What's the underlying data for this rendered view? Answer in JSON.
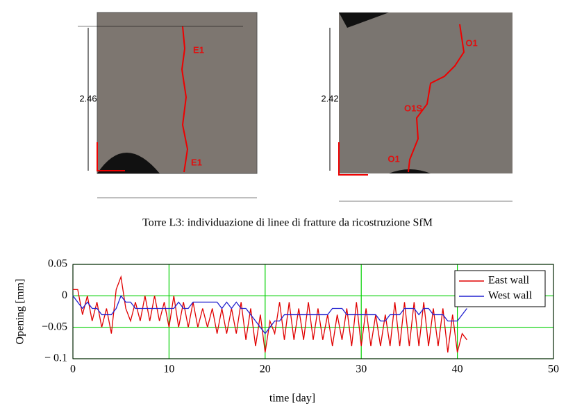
{
  "figures": [
    {
      "dimension": "2.46",
      "labels": [
        "E1",
        "E1"
      ]
    },
    {
      "dimension": "2.42",
      "labels": [
        "O1",
        "O1S",
        "O1"
      ]
    }
  ],
  "caption": "Torre L3: individuazione di linee di fratture da ricostruzione SfM",
  "chart_data": {
    "type": "line",
    "xlabel": "time [day]",
    "ylabel": "Opening [mm]",
    "x": [
      0,
      0.5,
      1,
      1.5,
      2,
      2.5,
      3,
      3.5,
      4,
      4.5,
      5,
      5.5,
      6,
      6.5,
      7,
      7.5,
      8,
      8.5,
      9,
      9.5,
      10,
      10.5,
      11,
      11.5,
      12,
      12.5,
      13,
      13.5,
      14,
      14.5,
      15,
      15.5,
      16,
      16.5,
      17,
      17.5,
      18,
      18.5,
      19,
      19.5,
      20,
      20.5,
      21,
      21.5,
      22,
      22.5,
      23,
      23.5,
      24,
      24.5,
      25,
      25.5,
      26,
      26.5,
      27,
      27.5,
      28,
      28.5,
      29,
      29.5,
      30,
      30.5,
      31,
      31.5,
      32,
      32.5,
      33,
      33.5,
      34,
      34.5,
      35,
      35.5,
      36,
      36.5,
      37,
      37.5,
      38,
      38.5,
      39,
      39.5,
      40,
      40.5,
      41
    ],
    "series": [
      {
        "name": "East wall",
        "color": "#e00000",
        "values": [
          0.01,
          0.01,
          -0.03,
          0,
          -0.04,
          -0.01,
          -0.05,
          -0.02,
          -0.06,
          0.01,
          0.03,
          -0.02,
          -0.04,
          -0.01,
          -0.04,
          0,
          -0.04,
          0,
          -0.04,
          -0.01,
          -0.05,
          0,
          -0.05,
          -0.01,
          -0.05,
          -0.01,
          -0.05,
          -0.02,
          -0.05,
          -0.02,
          -0.06,
          -0.02,
          -0.06,
          -0.02,
          -0.06,
          -0.01,
          -0.07,
          -0.02,
          -0.08,
          -0.03,
          -0.09,
          -0.04,
          -0.06,
          -0.01,
          -0.07,
          -0.01,
          -0.07,
          -0.02,
          -0.07,
          -0.01,
          -0.07,
          -0.02,
          -0.07,
          -0.03,
          -0.08,
          -0.03,
          -0.07,
          -0.02,
          -0.08,
          -0.01,
          -0.08,
          -0.02,
          -0.08,
          -0.03,
          -0.08,
          -0.03,
          -0.08,
          -0.01,
          -0.08,
          -0.01,
          -0.08,
          -0.01,
          -0.08,
          -0.01,
          -0.08,
          -0.02,
          -0.08,
          -0.02,
          -0.09,
          -0.03,
          -0.09,
          -0.06,
          -0.07
        ]
      },
      {
        "name": "West wall",
        "color": "#2020d0",
        "values": [
          0,
          -0.01,
          -0.02,
          -0.01,
          -0.02,
          -0.02,
          -0.03,
          -0.03,
          -0.03,
          -0.02,
          0,
          -0.01,
          -0.01,
          -0.02,
          -0.02,
          -0.02,
          -0.02,
          -0.02,
          -0.02,
          -0.02,
          -0.02,
          -0.02,
          -0.01,
          -0.02,
          -0.02,
          -0.01,
          -0.01,
          -0.01,
          -0.01,
          -0.01,
          -0.01,
          -0.02,
          -0.01,
          -0.02,
          -0.01,
          -0.02,
          -0.02,
          -0.03,
          -0.04,
          -0.05,
          -0.06,
          -0.05,
          -0.04,
          -0.04,
          -0.03,
          -0.03,
          -0.03,
          -0.03,
          -0.03,
          -0.03,
          -0.03,
          -0.03,
          -0.03,
          -0.03,
          -0.02,
          -0.02,
          -0.02,
          -0.03,
          -0.03,
          -0.03,
          -0.03,
          -0.03,
          -0.03,
          -0.03,
          -0.04,
          -0.04,
          -0.03,
          -0.03,
          -0.03,
          -0.02,
          -0.02,
          -0.02,
          -0.03,
          -0.02,
          -0.02,
          -0.03,
          -0.03,
          -0.03,
          -0.04,
          -0.04,
          -0.04,
          -0.03,
          -0.02
        ]
      }
    ],
    "xlim": [
      0,
      50
    ],
    "xticks": [
      0,
      10,
      20,
      30,
      40,
      50
    ],
    "ylim": [
      -0.1,
      0.05
    ],
    "yticks": [
      {
        "value": 0.05,
        "label": "0.05"
      },
      {
        "value": 0,
        "label": "0"
      },
      {
        "value": -0.05,
        "label": "−0.05"
      },
      {
        "value": -0.1,
        "label": "− 0.1"
      }
    ],
    "grid": true,
    "legend": "upper right"
  }
}
